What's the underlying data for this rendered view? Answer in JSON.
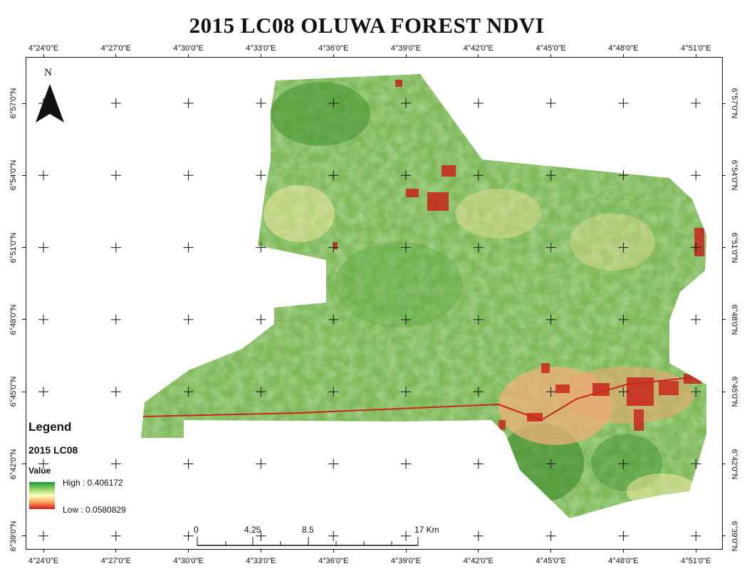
{
  "title": "2015 LC08 OLUWA FOREST NDVI",
  "graticule": {
    "longitudes": [
      "4°24'0\"E",
      "4°27'0\"E",
      "4°30'0\"E",
      "4°33'0\"E",
      "4°36'0\"E",
      "4°39'0\"E",
      "4°42'0\"E",
      "4°45'0\"E",
      "4°48'0\"E",
      "4°51'0\"E"
    ],
    "latitudes": [
      "6°57'0\"N",
      "6°54'0\"N",
      "6°51'0\"N",
      "6°48'0\"N",
      "6°45'0\"N",
      "6°42'0\"N",
      "6°39'0\"N"
    ]
  },
  "north_arrow": {
    "label": "N"
  },
  "legend": {
    "title": "Legend",
    "layer": "2015 LC08",
    "field": "Value",
    "high_label": "High : 0.406172",
    "low_label": "Low : 0.0580829",
    "high_color": "#1a9641",
    "mid_color": "#ffffbf",
    "low_color": "#d7191c"
  },
  "scale_bar": {
    "labels": [
      "0",
      "4.25",
      "8.5",
      "17 Km"
    ]
  },
  "colors": {
    "vegetation_high": "#4f9a36",
    "vegetation_mid": "#8cc063",
    "bare": "#f3e9a6",
    "low": "#c8261c"
  }
}
